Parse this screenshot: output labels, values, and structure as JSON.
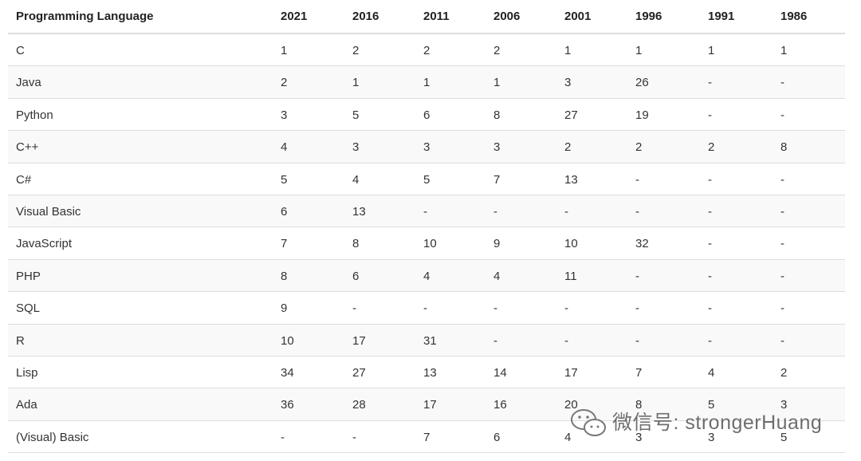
{
  "table": {
    "header": [
      "Programming Language",
      "2021",
      "2016",
      "2011",
      "2006",
      "2001",
      "1996",
      "1991",
      "1986"
    ],
    "rows": [
      [
        "C",
        "1",
        "2",
        "2",
        "2",
        "1",
        "1",
        "1",
        "1"
      ],
      [
        "Java",
        "2",
        "1",
        "1",
        "1",
        "3",
        "26",
        "-",
        "-"
      ],
      [
        "Python",
        "3",
        "5",
        "6",
        "8",
        "27",
        "19",
        "-",
        "-"
      ],
      [
        "C++",
        "4",
        "3",
        "3",
        "3",
        "2",
        "2",
        "2",
        "8"
      ],
      [
        "C#",
        "5",
        "4",
        "5",
        "7",
        "13",
        "-",
        "-",
        "-"
      ],
      [
        "Visual Basic",
        "6",
        "13",
        "-",
        "-",
        "-",
        "-",
        "-",
        "-"
      ],
      [
        "JavaScript",
        "7",
        "8",
        "10",
        "9",
        "10",
        "32",
        "-",
        "-"
      ],
      [
        "PHP",
        "8",
        "6",
        "4",
        "4",
        "11",
        "-",
        "-",
        "-"
      ],
      [
        "SQL",
        "9",
        "-",
        "-",
        "-",
        "-",
        "-",
        "-",
        "-"
      ],
      [
        "R",
        "10",
        "17",
        "31",
        "-",
        "-",
        "-",
        "-",
        "-"
      ],
      [
        "Lisp",
        "34",
        "27",
        "13",
        "14",
        "17",
        "7",
        "4",
        "2"
      ],
      [
        "Ada",
        "36",
        "28",
        "17",
        "16",
        "20",
        "8",
        "5",
        "3"
      ],
      [
        "(Visual) Basic",
        "-",
        "-",
        "7",
        "6",
        "4",
        "3",
        "3",
        "5"
      ]
    ]
  },
  "watermark": "微信号: strongerHuang"
}
